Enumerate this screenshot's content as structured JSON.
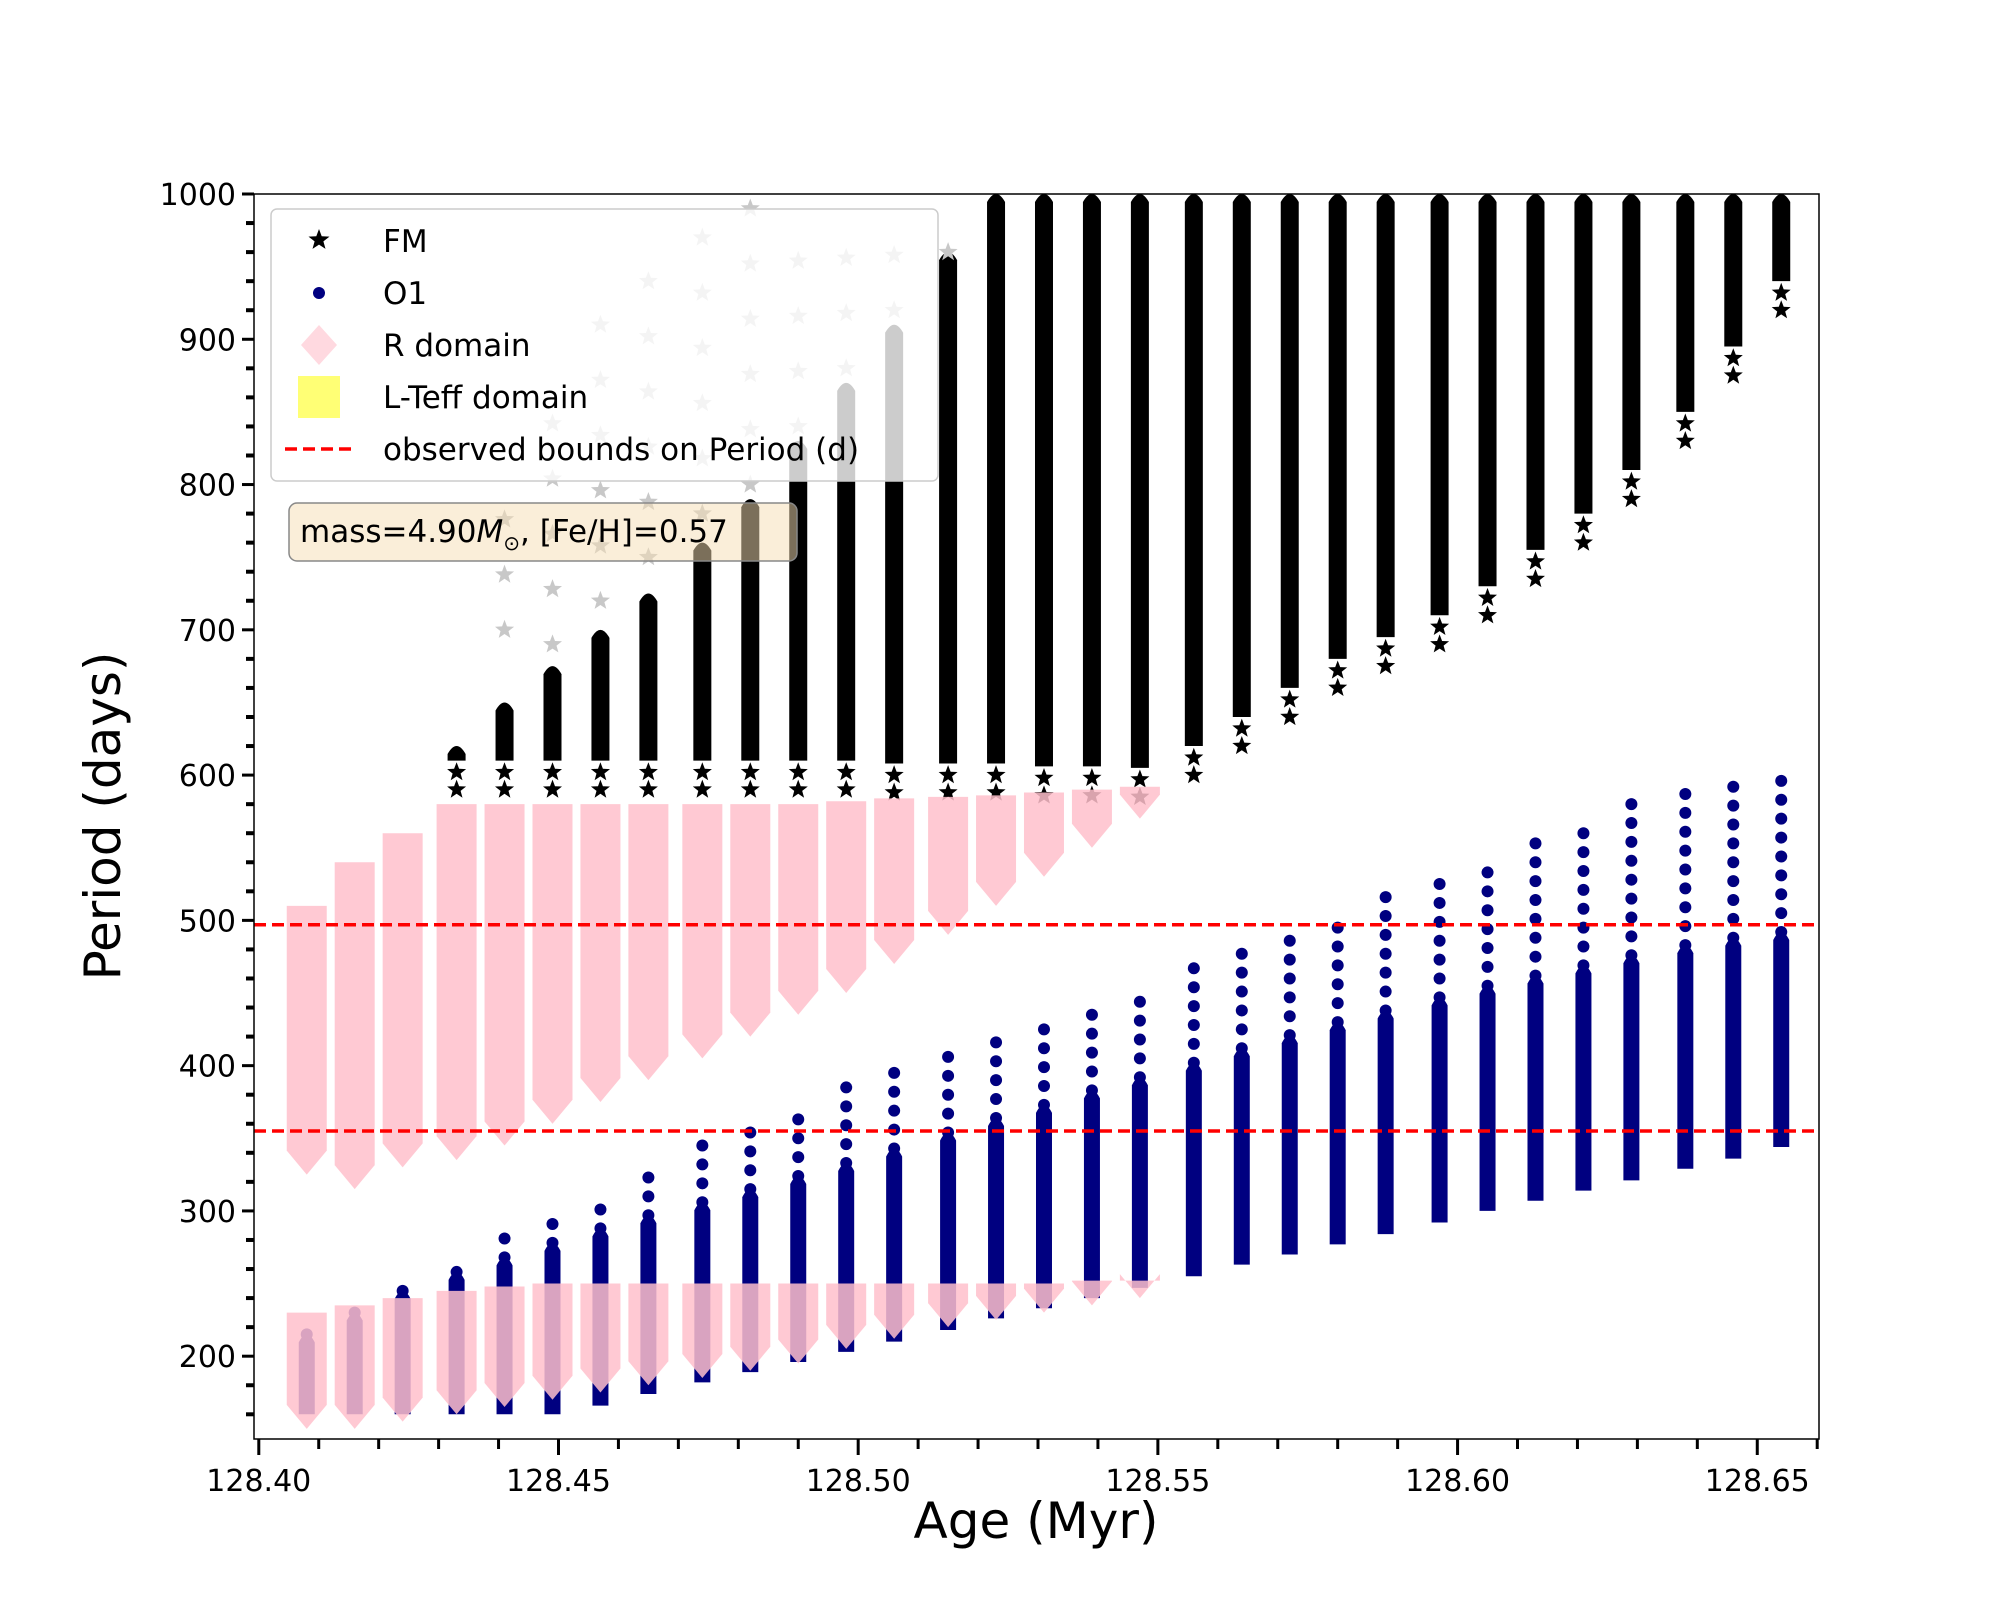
{
  "chart_data": {
    "type": "scatter",
    "title": "",
    "xlabel": "Age (Myr)",
    "ylabel": "Period (days)",
    "xlim": [
      128.3992,
      128.6603
    ],
    "ylim": [
      143,
      1000
    ],
    "xticks": [
      "128.40",
      "128.45",
      "128.50",
      "128.55",
      "128.60",
      "128.65"
    ],
    "xtick_values": [
      128.4,
      128.45,
      128.5,
      128.55,
      128.6,
      128.65
    ],
    "yticks": [
      "200",
      "300",
      "400",
      "500",
      "600",
      "700",
      "800",
      "900",
      "1000"
    ],
    "ytick_values": [
      200,
      300,
      400,
      500,
      600,
      700,
      800,
      900,
      1000
    ],
    "grid": false,
    "legend_position": "top-left",
    "legend": [
      {
        "label": "FM",
        "marker": "star",
        "color": "#000000"
      },
      {
        "label": "O1",
        "marker": "circle",
        "color": "#000080"
      },
      {
        "label": "R domain",
        "marker": "diamond",
        "color": "#ffc0cb"
      },
      {
        "label": "L-Teff domain",
        "marker": "square",
        "color": "#ffff66"
      },
      {
        "label": "observed bounds on Period (d)",
        "marker": "dashed-line",
        "color": "#ff0000"
      }
    ],
    "annotation": {
      "prefix": "mass=4.90",
      "mass_symbol": "M",
      "sun_symbol": "⊙",
      "suffix": ", [Fe/H]=0.57"
    },
    "hlines": [
      497,
      355
    ],
    "series": [
      {
        "name": "FM",
        "color": "#000000",
        "loops_columns": [
          "age",
          "period_min",
          "period_dense_max"
        ],
        "loops": [
          [
            128.433,
            590,
            620
          ],
          [
            128.441,
            590,
            650
          ],
          [
            128.449,
            590,
            675
          ],
          [
            128.457,
            590,
            700
          ],
          [
            128.465,
            590,
            725
          ],
          [
            128.474,
            590,
            760
          ],
          [
            128.482,
            590,
            790
          ],
          [
            128.49,
            590,
            830
          ],
          [
            128.498,
            590,
            870
          ],
          [
            128.506,
            588,
            910
          ],
          [
            128.515,
            588,
            960
          ],
          [
            128.523,
            588,
            1000
          ],
          [
            128.531,
            586,
            1000
          ],
          [
            128.539,
            586,
            1000
          ],
          [
            128.547,
            585,
            1000
          ],
          [
            128.556,
            600,
            1000
          ],
          [
            128.564,
            620,
            1000
          ],
          [
            128.572,
            640,
            1000
          ],
          [
            128.58,
            660,
            1000
          ],
          [
            128.588,
            675,
            1000
          ],
          [
            128.597,
            690,
            1000
          ],
          [
            128.605,
            710,
            1000
          ],
          [
            128.613,
            735,
            1000
          ],
          [
            128.621,
            760,
            1000
          ],
          [
            128.629,
            790,
            1000
          ],
          [
            128.638,
            830,
            1000
          ],
          [
            128.646,
            875,
            1000
          ],
          [
            128.654,
            920,
            1000
          ]
        ]
      },
      {
        "name": "FM (faded)",
        "color": "#c8c8c8",
        "loops_columns": [
          "age",
          "period_min",
          "period_max"
        ],
        "loops": [
          [
            128.441,
            700,
            800
          ],
          [
            128.449,
            690,
            870
          ],
          [
            128.457,
            720,
            930
          ],
          [
            128.465,
            750,
            960
          ],
          [
            128.474,
            780,
            990
          ],
          [
            128.482,
            800,
            990
          ],
          [
            128.49,
            840,
            980
          ],
          [
            128.498,
            880,
            990
          ],
          [
            128.506,
            920,
            990
          ],
          [
            128.515,
            960,
            990
          ]
        ]
      },
      {
        "name": "O1",
        "color": "#000080",
        "loops_columns": [
          "age",
          "period_min",
          "period_dense_max",
          "period_max"
        ],
        "loops": [
          [
            128.408,
            160,
            215,
            220
          ],
          [
            128.416,
            160,
            230,
            235
          ],
          [
            128.424,
            160,
            245,
            248
          ],
          [
            128.433,
            160,
            258,
            262
          ],
          [
            128.441,
            160,
            268,
            282
          ],
          [
            128.449,
            160,
            278,
            298
          ],
          [
            128.457,
            166,
            288,
            313
          ],
          [
            128.465,
            174,
            297,
            328
          ],
          [
            128.474,
            182,
            306,
            345
          ],
          [
            128.482,
            189,
            315,
            360
          ],
          [
            128.49,
            196,
            324,
            372
          ],
          [
            128.498,
            203,
            333,
            387
          ],
          [
            128.506,
            210,
            343,
            400
          ],
          [
            128.515,
            218,
            354,
            410
          ],
          [
            128.523,
            226,
            364,
            424
          ],
          [
            128.531,
            233,
            373,
            435
          ],
          [
            128.539,
            240,
            383,
            446
          ],
          [
            128.547,
            247,
            392,
            456
          ],
          [
            128.556,
            255,
            402,
            468
          ],
          [
            128.564,
            263,
            412,
            481
          ],
          [
            128.572,
            270,
            421,
            494
          ],
          [
            128.58,
            277,
            430,
            507
          ],
          [
            128.588,
            284,
            438,
            520
          ],
          [
            128.597,
            292,
            447,
            534
          ],
          [
            128.605,
            300,
            455,
            545
          ],
          [
            128.613,
            307,
            462,
            557
          ],
          [
            128.621,
            314,
            469,
            569
          ],
          [
            128.629,
            321,
            476,
            580
          ],
          [
            128.638,
            329,
            483,
            590
          ],
          [
            128.646,
            336,
            488,
            598
          ],
          [
            128.654,
            344,
            492,
            607
          ]
        ]
      },
      {
        "name": "R domain",
        "color": "#ffc0cb",
        "loops_columns": [
          "age",
          "upper_min",
          "upper_max",
          "lower_min",
          "lower_max"
        ],
        "loops": [
          [
            128.408,
            325,
            510,
            150,
            230
          ],
          [
            128.416,
            315,
            540,
            150,
            235
          ],
          [
            128.424,
            330,
            560,
            155,
            240
          ],
          [
            128.433,
            335,
            580,
            160,
            245
          ],
          [
            128.441,
            345,
            580,
            165,
            248
          ],
          [
            128.449,
            360,
            580,
            170,
            250
          ],
          [
            128.457,
            375,
            580,
            175,
            250
          ],
          [
            128.465,
            390,
            580,
            180,
            250
          ],
          [
            128.474,
            405,
            580,
            185,
            250
          ],
          [
            128.482,
            420,
            580,
            190,
            250
          ],
          [
            128.49,
            435,
            580,
            195,
            250
          ],
          [
            128.498,
            450,
            582,
            205,
            250
          ],
          [
            128.506,
            470,
            584,
            212,
            250
          ],
          [
            128.515,
            490,
            585,
            220,
            250
          ],
          [
            128.523,
            510,
            586,
            225,
            250
          ],
          [
            128.531,
            530,
            588,
            230,
            250
          ],
          [
            128.539,
            550,
            590,
            235,
            252
          ],
          [
            128.547,
            570,
            592,
            240,
            252
          ]
        ]
      }
    ]
  }
}
